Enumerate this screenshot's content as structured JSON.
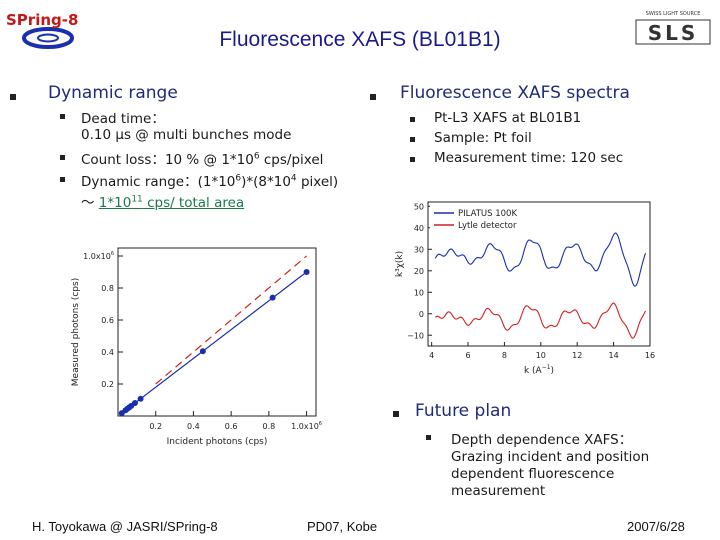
{
  "logos": {
    "spring8": "SPring-8",
    "sls_top": "SWISS LIGHT SOURCE",
    "sls": "SLS"
  },
  "title": "Fluorescence XAFS (BL01B1)",
  "left": {
    "heading": "Dynamic range",
    "items": [
      "Dead time：",
      "0.10 μs @ multi bunches mode",
      "Count loss：10 % @ 1*10",
      "Dynamic range：(1*10",
      "〜 "
    ],
    "count_loss_sup": "6",
    "count_loss_tail": " cps/pixel",
    "dyn_sup1": "6",
    "dyn_mid": ")*(8*10",
    "dyn_sup2": "4",
    "dyn_tail": " pixel)",
    "link_pre": "1*10",
    "link_sup": "11",
    "link_post": " cps/ total area"
  },
  "right": {
    "heading": "Fluorescence XAFS spectra",
    "items": [
      "Pt-L3 XAFS at BL01B1",
      "Sample: Pt foil",
      "Measurement time: 120 sec"
    ]
  },
  "future": {
    "heading": "Future plan",
    "item_lines": [
      "Depth dependence XAFS：",
      "Grazing incident and position",
      "dependent fluorescence",
      "measurement"
    ]
  },
  "footer": {
    "left": "H. Toyokawa @ JASRI/SPring-8",
    "center": "PD07, Kobe",
    "right": "2007/6/28"
  },
  "colors": {
    "title": "#1a1a8a",
    "blue": "#1a2fb0",
    "red": "#d42020",
    "link": "#1a7a4a"
  },
  "chart_data": [
    {
      "type": "scatter",
      "xlabel": "Incident photons (cps)",
      "ylabel": "Measured photons (cps)",
      "x_ticks": [
        "0.2",
        "0.4",
        "0.6",
        "0.8",
        "1.0x10"
      ],
      "x_tick_sup": "6",
      "y_ticks": [
        "0.2",
        "0.4",
        "0.6",
        "0.8",
        "1.0x10"
      ],
      "y_tick_sup": "6",
      "xlim": [
        0,
        1.05
      ],
      "ylim": [
        0,
        1.05
      ],
      "series": [
        {
          "style": "markers+fit",
          "color": "#1a2fb0",
          "x": [
            0.02,
            0.04,
            0.05,
            0.06,
            0.07,
            0.09,
            0.12,
            0.45,
            0.82,
            1.0
          ],
          "y": [
            0.018,
            0.036,
            0.045,
            0.054,
            0.063,
            0.081,
            0.108,
            0.405,
            0.74,
            0.9
          ]
        },
        {
          "style": "dashed",
          "color": "#d42020",
          "x": [
            0.2,
            1.0
          ],
          "y": [
            0.2,
            1.0
          ]
        }
      ]
    },
    {
      "type": "line",
      "xlabel": "k (A",
      "xlabel_sup": "−1",
      "xlabel_end": ")",
      "ylabel": "k³χ(k)",
      "x_ticks": [
        "4",
        "6",
        "8",
        "10",
        "12",
        "14",
        "16"
      ],
      "y_ticks": [
        "50",
        "40",
        "30",
        "20",
        "10",
        "0",
        "−10"
      ],
      "xlim": [
        3.8,
        16
      ],
      "ylim": [
        -15,
        52
      ],
      "legend": [
        "PILATUS 100K",
        "Lytle detector"
      ],
      "series": [
        {
          "name": "PILATUS 100K",
          "color": "#1a2fb0",
          "offset": 27,
          "amp_start": 3,
          "amp_end": 14
        },
        {
          "name": "Lytle detector",
          "color": "#d42020",
          "offset": -2,
          "amp_start": 3,
          "amp_end": 9
        }
      ]
    }
  ]
}
